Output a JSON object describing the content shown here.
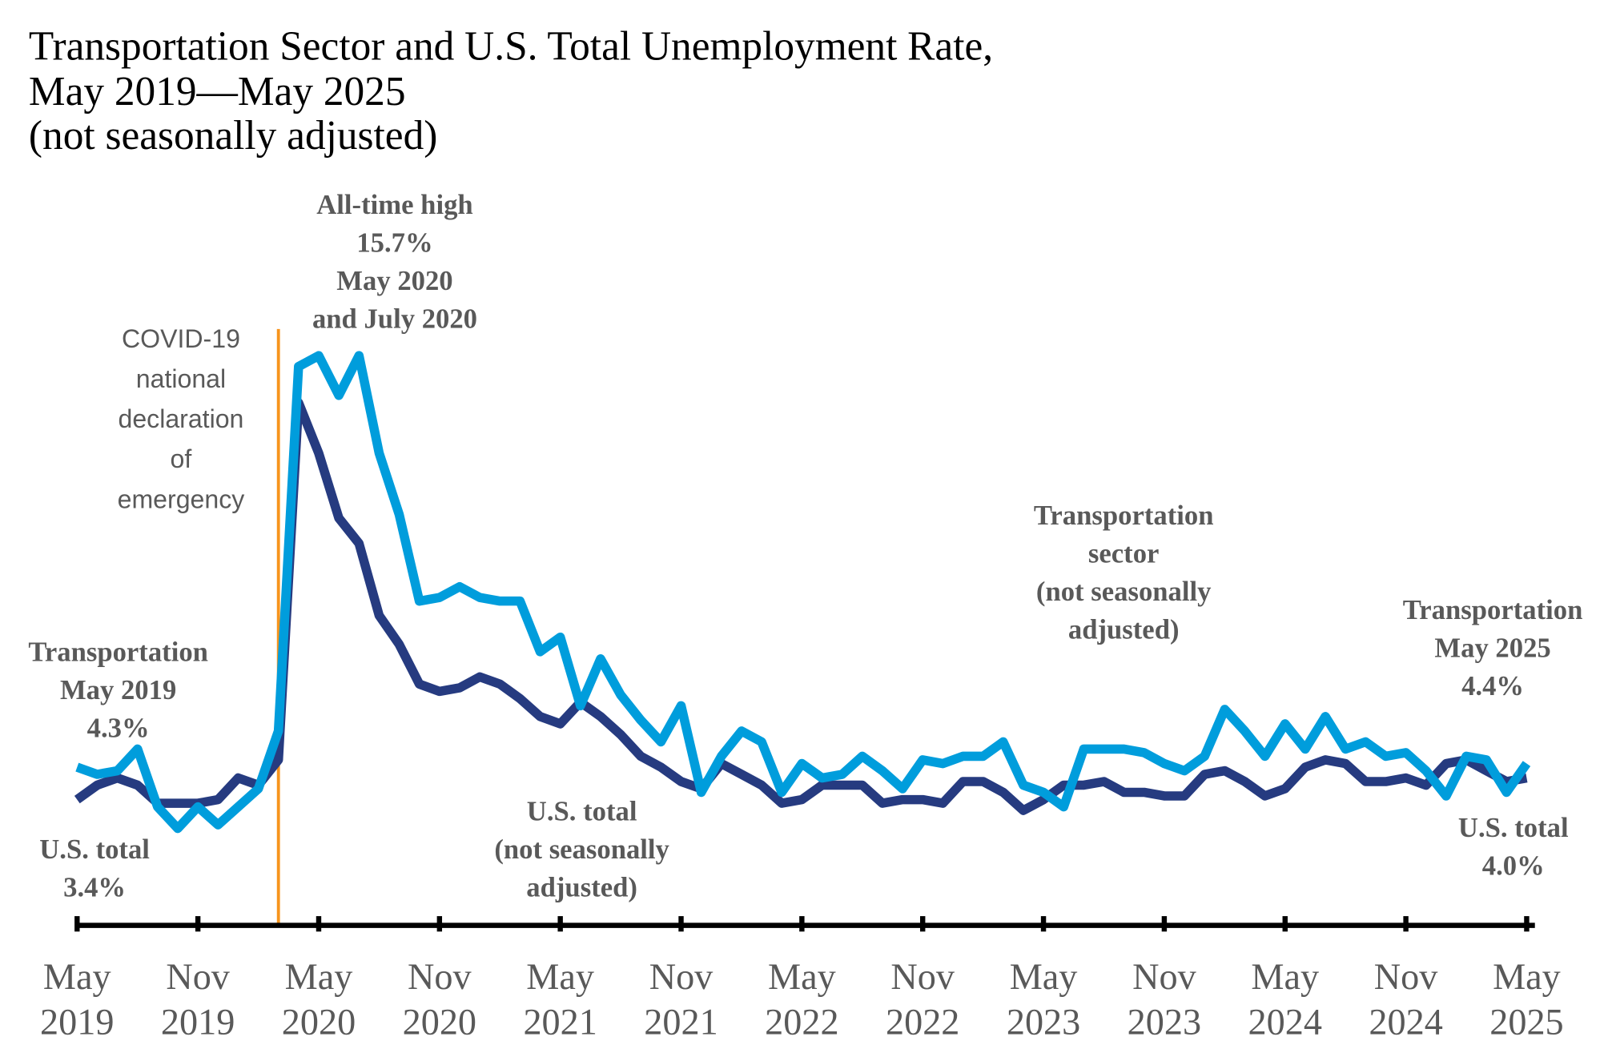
{
  "chart_data": {
    "type": "line",
    "title": [
      "Transportation Sector and U.S. Total Unemployment Rate,",
      "May 2019—May 2025",
      "(not seasonally adjusted)"
    ],
    "xlabel": "",
    "ylabel": "",
    "ylim": [
      0,
      16
    ],
    "grid": false,
    "x_start": "May 2019",
    "x_end": "May 2025",
    "x_ticks": [
      [
        "May",
        "2019"
      ],
      [
        "Nov",
        "2019"
      ],
      [
        "May",
        "2020"
      ],
      [
        "Nov",
        "2020"
      ],
      [
        "May",
        "2021"
      ],
      [
        "Nov",
        "2021"
      ],
      [
        "May",
        "2022"
      ],
      [
        "Nov",
        "2022"
      ],
      [
        "May",
        "2023"
      ],
      [
        "Nov",
        "2023"
      ],
      [
        "May",
        "2024"
      ],
      [
        "Nov",
        "2024"
      ],
      [
        "May",
        "2025"
      ]
    ],
    "series": [
      {
        "name": "Transportation sector (not seasonally adjusted)",
        "color": "#009DDC",
        "values": [
          4.3,
          4.1,
          4.2,
          4.8,
          3.2,
          2.6,
          3.2,
          2.7,
          3.2,
          3.7,
          5.3,
          15.4,
          15.7,
          14.6,
          15.7,
          13.0,
          11.3,
          8.9,
          9.0,
          9.3,
          9.0,
          8.9,
          8.9,
          7.5,
          7.9,
          6.0,
          7.3,
          6.3,
          5.6,
          5.0,
          6.0,
          3.6,
          4.6,
          5.3,
          5.0,
          3.6,
          4.4,
          4.0,
          4.1,
          4.6,
          4.2,
          3.7,
          4.5,
          4.4,
          4.6,
          4.6,
          5.0,
          3.8,
          3.6,
          3.2,
          4.8,
          4.8,
          4.8,
          4.7,
          4.4,
          4.2,
          4.6,
          5.9,
          5.3,
          4.6,
          5.5,
          4.8,
          5.7,
          4.8,
          5.0,
          4.6,
          4.7,
          4.2,
          3.5,
          4.6,
          4.5,
          3.6,
          4.4
        ]
      },
      {
        "name": "U.S. total (not seasonally adjusted)",
        "color": "#263B80",
        "values": [
          3.4,
          3.8,
          4.0,
          3.8,
          3.3,
          3.3,
          3.3,
          3.4,
          4.0,
          3.8,
          4.5,
          14.4,
          13.0,
          11.2,
          10.5,
          8.5,
          7.7,
          6.6,
          6.4,
          6.5,
          6.8,
          6.6,
          6.2,
          5.7,
          5.5,
          6.1,
          5.7,
          5.2,
          4.6,
          4.3,
          3.9,
          3.7,
          4.4,
          4.1,
          3.8,
          3.3,
          3.4,
          3.8,
          3.8,
          3.8,
          3.3,
          3.4,
          3.4,
          3.3,
          3.9,
          3.9,
          3.6,
          3.1,
          3.4,
          3.8,
          3.8,
          3.9,
          3.6,
          3.6,
          3.5,
          3.5,
          4.1,
          4.2,
          3.9,
          3.5,
          3.7,
          4.3,
          4.5,
          4.4,
          3.9,
          3.9,
          4.0,
          3.8,
          4.4,
          4.5,
          4.2,
          3.9,
          4.0
        ]
      }
    ],
    "event_line": {
      "month": "Mar 2020",
      "color": "#F7941D",
      "label": [
        "COVID-19",
        "national",
        "declaration",
        "of",
        "emergency"
      ]
    },
    "annotations": {
      "peak": [
        "All-time high",
        "15.7%",
        "May 2020",
        "and July 2020"
      ],
      "transport_start": [
        "Transportation",
        "May 2019",
        "4.3%"
      ],
      "us_start": [
        "U.S. total",
        "3.4%"
      ],
      "us_series": [
        "U.S. total",
        "(not seasonally",
        "adjusted)"
      ],
      "transport_series": [
        "Transportation",
        "sector",
        "(not seasonally",
        "adjusted)"
      ],
      "transport_end": [
        "Transportation",
        "May 2025",
        "4.4%"
      ],
      "us_end": [
        "U.S. total",
        "4.0%"
      ]
    }
  }
}
